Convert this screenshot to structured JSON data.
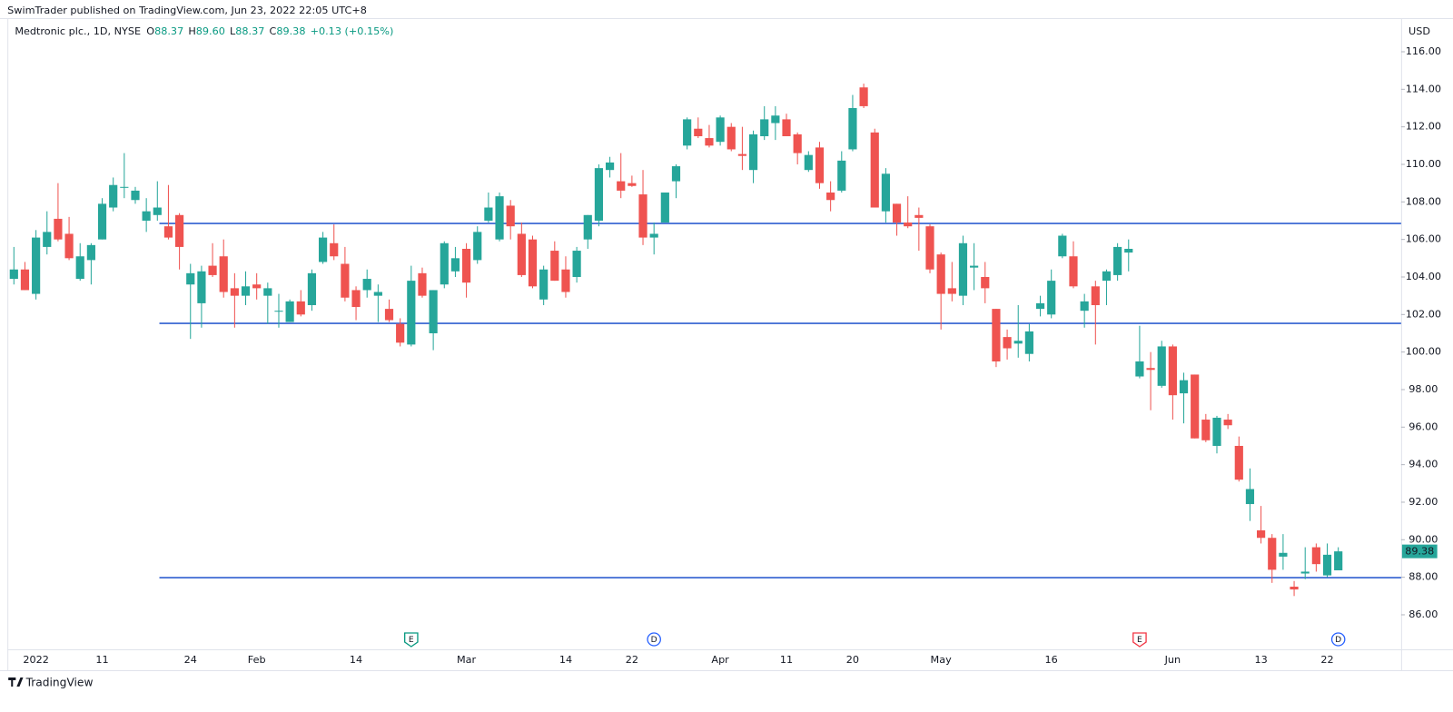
{
  "header": {
    "publisher": "SwimTrader published on TradingView.com, Jun 23, 2022 22:05 UTC+8"
  },
  "footer": {
    "brand": "TradingView"
  },
  "readout": {
    "fields": [
      {
        "key": "O",
        "value": "88.37"
      },
      {
        "key": "H",
        "value": "89.60"
      },
      {
        "key": "L",
        "value": "88.37"
      },
      {
        "key": "C",
        "value": "89.38"
      }
    ],
    "change": "+0.13 (+0.15%)"
  },
  "chart_data": {
    "type": "candlestick",
    "title": "Medtronic plc., 1D, NYSE",
    "y_axis_label": "USD",
    "up_color": "#26a69a",
    "down_color": "#ef5350",
    "categories": [
      null,
      null,
      "2022",
      null,
      null,
      null,
      null,
      null,
      "11",
      null,
      null,
      null,
      null,
      null,
      null,
      null,
      "24",
      null,
      null,
      null,
      null,
      null,
      "Feb",
      null,
      null,
      null,
      null,
      null,
      null,
      null,
      null,
      "14",
      null,
      null,
      null,
      null,
      null,
      null,
      null,
      null,
      null,
      "Mar",
      null,
      null,
      null,
      null,
      null,
      null,
      null,
      null,
      "14",
      null,
      null,
      null,
      null,
      null,
      "22",
      null,
      null,
      null,
      null,
      null,
      null,
      null,
      "Apr",
      null,
      null,
      null,
      null,
      null,
      "11",
      null,
      null,
      null,
      null,
      null,
      "20",
      null,
      null,
      null,
      null,
      null,
      null,
      null,
      "May",
      null,
      null,
      null,
      null,
      null,
      null,
      null,
      null,
      null,
      "16",
      null,
      null,
      null,
      null,
      null,
      null,
      null,
      null,
      null,
      null,
      "Jun",
      null,
      null,
      null,
      null,
      null,
      null,
      null,
      "13",
      null,
      null,
      null,
      null,
      null,
      "22",
      null
    ],
    "open": [
      103.9,
      104.4,
      103.1,
      105.6,
      107.1,
      106.3,
      103.9,
      104.9,
      106.0,
      107.7,
      108.75,
      108.1,
      107.0,
      107.3,
      106.7,
      107.3,
      103.6,
      102.6,
      104.6,
      105.1,
      103.4,
      103.0,
      103.6,
      103.0,
      102.15,
      101.6,
      102.7,
      102.5,
      104.8,
      105.8,
      104.7,
      103.3,
      103.3,
      103.0,
      102.3,
      101.5,
      100.4,
      104.2,
      101.0,
      103.6,
      104.3,
      105.5,
      104.9,
      107.0,
      106.0,
      107.8,
      106.3,
      106.0,
      102.8,
      105.4,
      104.4,
      104.0,
      106.0,
      107.0,
      109.7,
      109.1,
      109.0,
      108.4,
      106.1,
      106.9,
      109.1,
      111.0,
      111.9,
      111.4,
      111.2,
      112.0,
      110.55,
      109.7,
      111.5,
      112.2,
      112.4,
      111.6,
      109.7,
      110.9,
      108.5,
      108.6,
      110.8,
      114.1,
      111.7,
      107.5,
      107.9,
      106.9,
      107.3,
      106.7,
      105.2,
      103.4,
      103.0,
      104.5,
      104.0,
      102.3,
      100.8,
      100.45,
      99.9,
      102.3,
      102.0,
      105.1,
      105.1,
      102.2,
      103.5,
      103.8,
      104.1,
      105.3,
      98.7,
      99.15,
      98.2,
      100.3,
      97.8,
      98.8,
      96.4,
      95.0,
      96.4,
      95.0,
      91.9,
      90.5,
      90.1,
      89.1,
      87.5,
      88.2,
      89.6,
      88.1,
      88.37
    ],
    "high": [
      105.6,
      104.8,
      106.5,
      107.5,
      109.0,
      107.2,
      105.8,
      105.8,
      108.2,
      109.3,
      110.6,
      108.8,
      108.2,
      109.1,
      108.9,
      107.4,
      104.7,
      104.6,
      105.8,
      106.0,
      104.2,
      104.3,
      104.2,
      103.7,
      103.1,
      102.8,
      103.3,
      104.4,
      106.4,
      106.8,
      105.6,
      103.5,
      104.4,
      103.6,
      102.8,
      101.8,
      104.6,
      104.5,
      103.3,
      105.9,
      105.6,
      105.8,
      106.7,
      108.5,
      108.5,
      108.1,
      106.9,
      106.2,
      104.6,
      105.9,
      105.1,
      105.6,
      107.3,
      110.0,
      110.4,
      110.6,
      109.4,
      109.7,
      106.9,
      108.5,
      110.0,
      112.5,
      112.5,
      112.1,
      112.6,
      112.2,
      112.0,
      111.8,
      113.1,
      113.1,
      112.7,
      111.7,
      110.7,
      111.2,
      109.1,
      110.7,
      113.7,
      114.3,
      111.9,
      109.8,
      107.9,
      108.3,
      107.7,
      106.8,
      105.3,
      104.8,
      106.2,
      105.8,
      104.8,
      102.3,
      101.2,
      102.5,
      101.5,
      103.0,
      104.4,
      106.3,
      105.9,
      103.1,
      103.8,
      104.4,
      105.8,
      106.0,
      101.4,
      100.0,
      100.6,
      100.4,
      98.9,
      98.8,
      96.7,
      96.6,
      96.7,
      95.5,
      93.8,
      91.8,
      90.3,
      90.3,
      87.8,
      89.6,
      89.8,
      89.8,
      89.6
    ],
    "low": [
      103.6,
      103.3,
      102.8,
      105.2,
      105.9,
      104.9,
      103.8,
      103.6,
      106.0,
      107.5,
      108.2,
      107.9,
      106.4,
      107.0,
      106.0,
      104.4,
      100.7,
      101.3,
      104.0,
      102.9,
      101.3,
      102.5,
      102.8,
      101.5,
      101.3,
      101.6,
      101.9,
      102.2,
      104.7,
      104.9,
      102.7,
      101.7,
      102.9,
      101.6,
      101.6,
      100.3,
      100.3,
      102.9,
      100.1,
      103.4,
      104.0,
      102.9,
      104.7,
      106.9,
      105.9,
      106.0,
      104.0,
      103.4,
      102.5,
      103.8,
      102.9,
      103.7,
      105.5,
      106.7,
      109.3,
      108.2,
      108.8,
      105.7,
      105.2,
      106.9,
      108.2,
      110.8,
      111.4,
      110.9,
      111.0,
      110.7,
      109.7,
      109.0,
      111.3,
      111.3,
      111.5,
      110.0,
      109.6,
      108.7,
      107.5,
      108.5,
      110.7,
      113.0,
      107.7,
      106.9,
      106.2,
      106.6,
      105.4,
      104.2,
      101.2,
      102.7,
      102.5,
      103.3,
      102.6,
      99.2,
      99.6,
      99.7,
      99.5,
      101.9,
      101.8,
      105.0,
      103.4,
      101.3,
      100.4,
      102.5,
      103.8,
      104.3,
      98.6,
      96.9,
      98.1,
      96.4,
      96.2,
      95.4,
      95.2,
      94.6,
      95.9,
      93.1,
      91.0,
      89.8,
      87.7,
      88.4,
      87.0,
      87.9,
      88.3,
      88.0,
      88.37
    ],
    "close": [
      104.4,
      103.3,
      106.1,
      106.4,
      106.0,
      105.0,
      105.1,
      105.7,
      107.9,
      108.9,
      108.8,
      108.6,
      107.5,
      107.7,
      106.1,
      105.6,
      104.2,
      104.3,
      104.1,
      103.2,
      103.0,
      103.5,
      103.4,
      103.4,
      102.2,
      102.7,
      102.0,
      104.2,
      106.1,
      105.1,
      102.9,
      102.4,
      103.9,
      103.2,
      101.7,
      100.5,
      103.8,
      103.0,
      103.3,
      105.8,
      105.0,
      103.7,
      106.4,
      107.7,
      108.3,
      106.7,
      104.1,
      103.5,
      104.4,
      103.8,
      103.2,
      105.4,
      107.3,
      109.8,
      110.1,
      108.6,
      108.85,
      106.1,
      106.3,
      108.5,
      109.9,
      112.4,
      111.5,
      111.0,
      112.5,
      110.8,
      110.45,
      111.6,
      112.4,
      112.6,
      111.5,
      110.6,
      110.5,
      109.0,
      108.1,
      110.2,
      113.0,
      113.1,
      107.7,
      109.5,
      106.9,
      106.7,
      107.15,
      104.4,
      103.1,
      103.1,
      105.8,
      104.6,
      103.4,
      99.5,
      100.2,
      100.6,
      101.1,
      102.6,
      103.8,
      106.2,
      103.5,
      102.7,
      102.5,
      104.3,
      105.6,
      105.5,
      99.5,
      99.05,
      100.3,
      97.7,
      98.5,
      95.4,
      95.3,
      96.5,
      96.1,
      93.2,
      92.7,
      90.1,
      88.4,
      89.3,
      87.35,
      88.3,
      88.7,
      89.2,
      89.38
    ],
    "last_price": 89.38,
    "ylim": [
      84.16,
      117.79
    ],
    "yticks": [
      {
        "value": 86,
        "label": "86.00"
      },
      {
        "value": 88,
        "label": "88.00"
      },
      {
        "value": 90,
        "label": "90.00"
      },
      {
        "value": 92,
        "label": "92.00"
      },
      {
        "value": 94,
        "label": "94.00"
      },
      {
        "value": 96,
        "label": "96.00"
      },
      {
        "value": 98,
        "label": "98.00"
      },
      {
        "value": 100,
        "label": "100.00"
      },
      {
        "value": 102,
        "label": "102.00"
      },
      {
        "value": 104,
        "label": "104.00"
      },
      {
        "value": 106,
        "label": "106.00"
      },
      {
        "value": 108,
        "label": "108.00"
      },
      {
        "value": 110,
        "label": "110.00"
      },
      {
        "value": 112,
        "label": "112.00"
      },
      {
        "value": 114,
        "label": "114.00"
      },
      {
        "value": 116,
        "label": "116.00"
      }
    ],
    "hlines": {
      "color": "#2f5fd0",
      "values": [
        106.85,
        101.53,
        87.98
      ]
    },
    "events": [
      {
        "text": "E",
        "at": 36,
        "color": "#089981"
      },
      {
        "text": "D",
        "at": 58,
        "color": "#2962ff"
      },
      {
        "text": "E",
        "at": 102,
        "color": "#f23645"
      },
      {
        "text": "D",
        "at": 120,
        "color": "#2962ff"
      }
    ]
  }
}
